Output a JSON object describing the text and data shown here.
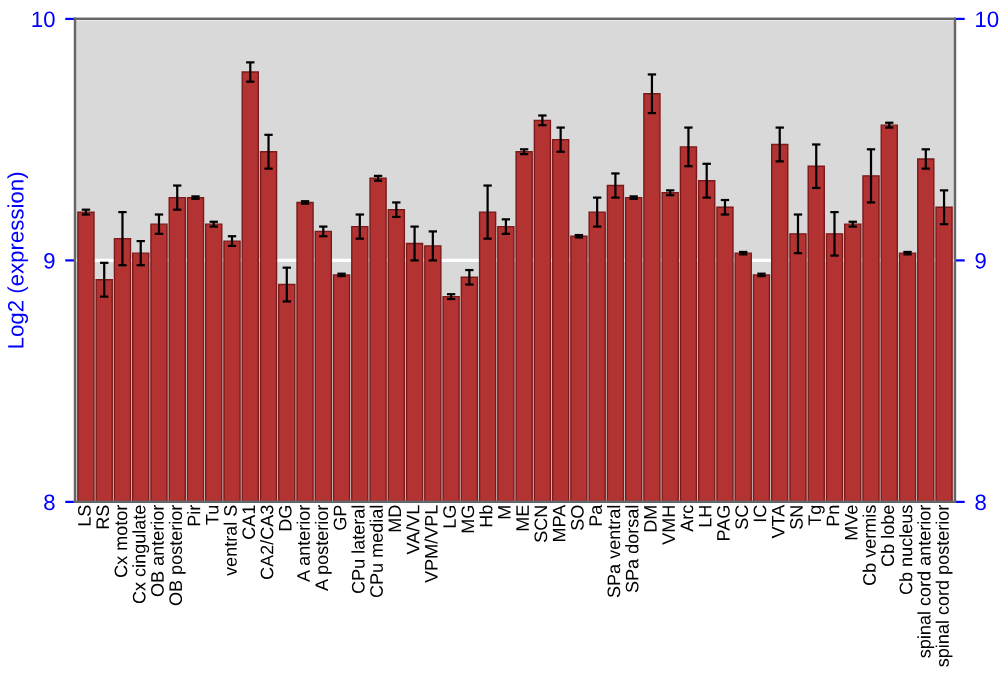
{
  "chart_data": {
    "type": "bar",
    "ylabel": "Log2 (expression)",
    "categories": [
      "LS",
      "RS",
      "Cx motor",
      "Cx cingulate",
      "OB anterior",
      "OB posterior",
      "Pir",
      "Tu",
      "ventral S",
      "CA1",
      "CA2/CA3",
      "DG",
      "A anterior",
      "A posterior",
      "GP",
      "CPu lateral",
      "CPu medial",
      "MD",
      "VA/VL",
      "VPM/VPL",
      "LG",
      "MG",
      "Hb",
      "M",
      "ME",
      "SCN",
      "MPA",
      "SO",
      "Pa",
      "SPa ventral",
      "SPa dorsal",
      "DM",
      "VMH",
      "Arc",
      "LH",
      "PAG",
      "SC",
      "IC",
      "VTA",
      "SN",
      "Tg",
      "Pn",
      "MVe",
      "Cb vermis",
      "Cb lobe",
      "Cb nucleus",
      "spinal cord anterior",
      "spinal cord posterior"
    ],
    "values": [
      9.2,
      8.92,
      9.09,
      9.03,
      9.15,
      9.26,
      9.26,
      9.15,
      9.08,
      9.78,
      9.45,
      8.9,
      9.24,
      9.12,
      8.94,
      9.14,
      9.34,
      9.21,
      9.07,
      9.06,
      8.85,
      8.93,
      9.2,
      9.14,
      9.45,
      9.58,
      9.5,
      9.1,
      9.2,
      9.31,
      9.26,
      9.69,
      9.28,
      9.47,
      9.33,
      9.22,
      9.03,
      8.94,
      9.48,
      9.11,
      9.39,
      9.11,
      9.15,
      9.35,
      9.56,
      9.03,
      9.42,
      9.22
    ],
    "errors": [
      0.01,
      0.07,
      0.11,
      0.05,
      0.04,
      0.05,
      0.005,
      0.01,
      0.02,
      0.04,
      0.07,
      0.07,
      0.005,
      0.02,
      0.005,
      0.05,
      0.01,
      0.03,
      0.07,
      0.06,
      0.01,
      0.03,
      0.11,
      0.03,
      0.01,
      0.02,
      0.05,
      0.005,
      0.06,
      0.05,
      0.005,
      0.08,
      0.01,
      0.08,
      0.07,
      0.03,
      0.005,
      0.005,
      0.07,
      0.08,
      0.09,
      0.09,
      0.01,
      0.11,
      0.01,
      0.005,
      0.04,
      0.07
    ],
    "color": "#b33232",
    "ylim": [
      8,
      10
    ],
    "yticks": [
      8,
      9,
      10
    ],
    "y2lim": [
      8,
      10
    ],
    "y2ticks": [
      8,
      9,
      10
    ],
    "grid": "y"
  }
}
